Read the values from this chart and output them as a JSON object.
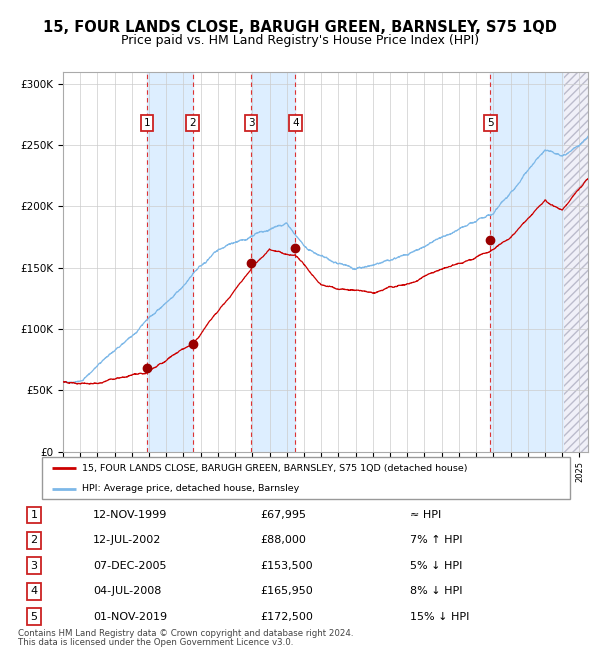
{
  "title": "15, FOUR LANDS CLOSE, BARUGH GREEN, BARNSLEY, S75 1QD",
  "subtitle": "Price paid vs. HM Land Registry's House Price Index (HPI)",
  "sales": [
    {
      "num": 1,
      "date": "12-NOV-1999",
      "price": 67995,
      "year": 1999.87,
      "hpi_rel": "≈ HPI"
    },
    {
      "num": 2,
      "date": "12-JUL-2002",
      "price": 88000,
      "year": 2002.53,
      "hpi_rel": "7% ↑ HPI"
    },
    {
      "num": 3,
      "date": "07-DEC-2005",
      "price": 153500,
      "year": 2005.93,
      "hpi_rel": "5% ↓ HPI"
    },
    {
      "num": 4,
      "date": "04-JUL-2008",
      "price": 165950,
      "year": 2008.5,
      "hpi_rel": "8% ↓ HPI"
    },
    {
      "num": 5,
      "date": "01-NOV-2019",
      "price": 172500,
      "year": 2019.83,
      "hpi_rel": "15% ↓ HPI"
    }
  ],
  "legend_house": "15, FOUR LANDS CLOSE, BARUGH GREEN, BARNSLEY, S75 1QD (detached house)",
  "legend_hpi": "HPI: Average price, detached house, Barnsley",
  "footer1": "Contains HM Land Registry data © Crown copyright and database right 2024.",
  "footer2": "This data is licensed under the Open Government Licence v3.0.",
  "ylim": [
    0,
    310000
  ],
  "xlim_start": 1995,
  "xlim_end": 2025.5,
  "yticks": [
    0,
    50000,
    100000,
    150000,
    200000,
    250000,
    300000
  ],
  "ytick_labels": [
    "£0",
    "£50K",
    "£100K",
    "£150K",
    "£200K",
    "£250K",
    "£300K"
  ],
  "hpi_color": "#7db8e8",
  "house_color": "#cc0000",
  "marker_color": "#990000",
  "bg_band_color": "#ddeeff",
  "grid_color": "#cccccc",
  "dashed_line_color": "#dd3333",
  "box_color": "#cc2222",
  "title_fontsize": 10.5,
  "subtitle_fontsize": 9,
  "axis_fontsize": 7.5,
  "future_start": 2024.08
}
